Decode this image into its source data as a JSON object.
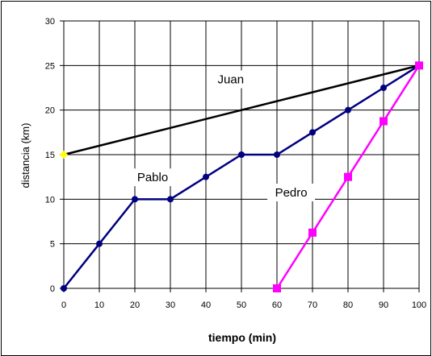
{
  "chart_data": {
    "type": "line",
    "title": "",
    "xlabel": "tiempo (min)",
    "ylabel": "distancia (km)",
    "xlim": [
      0,
      100
    ],
    "ylim": [
      0,
      30
    ],
    "x_ticks": [
      0,
      10,
      20,
      30,
      40,
      50,
      60,
      70,
      80,
      90,
      100
    ],
    "y_ticks": [
      0,
      5,
      10,
      15,
      20,
      25,
      30
    ],
    "grid": true,
    "legend": "none",
    "series": [
      {
        "name": "Juan",
        "color": "#000000",
        "marker": "diamond",
        "marker_color": "#ffff00",
        "points": [
          [
            0,
            15
          ],
          [
            100,
            25
          ]
        ]
      },
      {
        "name": "Pablo",
        "color": "#000080",
        "marker": "circle",
        "marker_color": "#000080",
        "points": [
          [
            0,
            0
          ],
          [
            10,
            5
          ],
          [
            20,
            10
          ],
          [
            30,
            10
          ],
          [
            40,
            12.5
          ],
          [
            50,
            15
          ],
          [
            60,
            15
          ],
          [
            70,
            17.5
          ],
          [
            80,
            20
          ],
          [
            90,
            22.5
          ],
          [
            100,
            25
          ]
        ]
      },
      {
        "name": "Pedro",
        "color": "#ff00ff",
        "marker": "square",
        "marker_color": "#ff00ff",
        "points": [
          [
            60,
            0
          ],
          [
            70,
            6.25
          ],
          [
            80,
            12.5
          ],
          [
            90,
            18.75
          ],
          [
            100,
            25
          ]
        ]
      }
    ],
    "annotations": [
      {
        "text": "Juan",
        "x": 47,
        "y": 23
      },
      {
        "text": "Pablo",
        "x": 25,
        "y": 12
      },
      {
        "text": "Pedro",
        "x": 64,
        "y": 10.3
      }
    ]
  }
}
